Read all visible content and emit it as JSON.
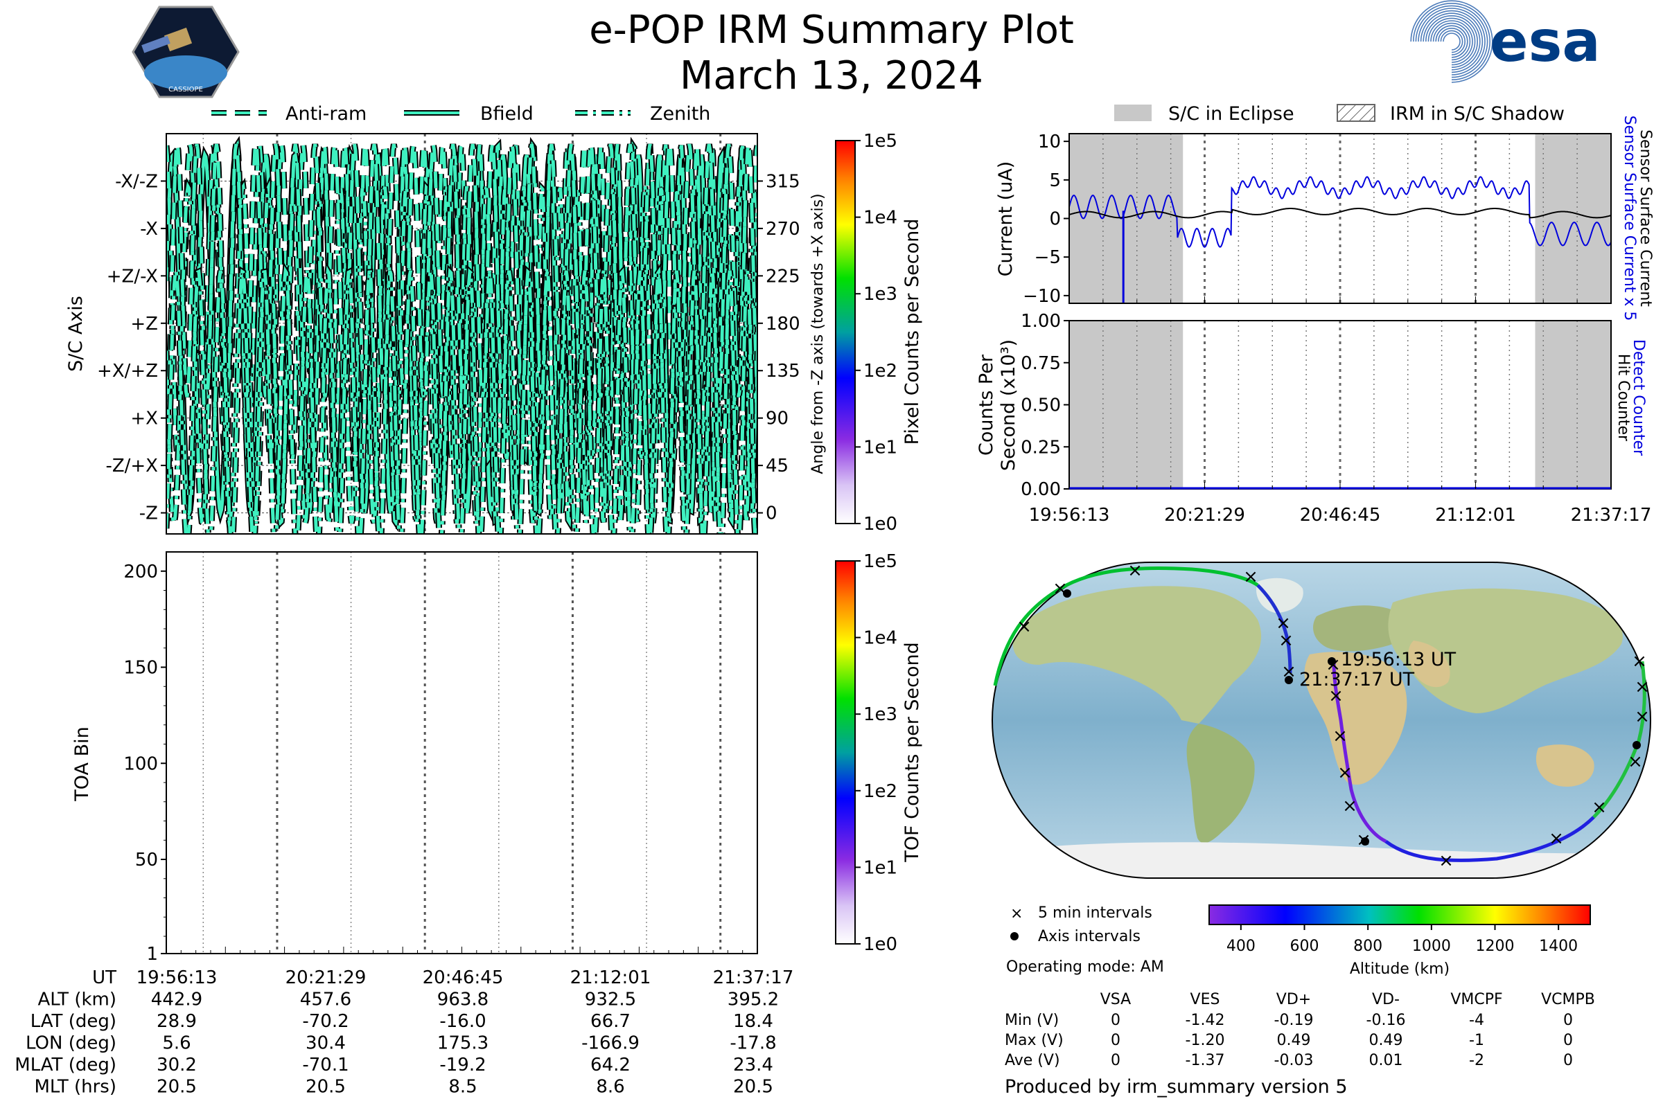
{
  "title": "e-POP IRM Summary Plot",
  "subtitle": "March 13, 2024",
  "logos": {
    "left": "CASSIOPE",
    "right": "esa"
  },
  "legend_top": [
    "Anti-ram",
    "Bfield",
    "Zenith"
  ],
  "legend_right": [
    "S/C in Eclipse",
    "IRM in S/C Shadow"
  ],
  "colors": {
    "trace_fill": "#3ff0c0",
    "current_blue": "#0000dd",
    "eclipse": "#c8c8c8"
  },
  "chart_data": [
    {
      "type": "line",
      "id": "attitude",
      "ylabel": "S/C Axis",
      "ylabel_right": "Angle from -Z axis (towards +X axis)",
      "y_axis_labels": [
        "-X/-Z",
        "-X",
        "+Z/-X",
        "+Z",
        "+X/+Z",
        "+X",
        "-Z/+X",
        "-Z"
      ],
      "y_ticks_right": [
        "315",
        "270",
        "225",
        "180",
        "135",
        "90",
        "45",
        "0"
      ],
      "ylim": [
        -20,
        360
      ],
      "series_names": [
        "Anti-ram",
        "Bfield",
        "Zenith"
      ],
      "colorbar": {
        "label": "Pixel Counts per Second",
        "ticks": [
          "1e0",
          "1e1",
          "1e2",
          "1e3",
          "1e4",
          "1e5"
        ]
      }
    },
    {
      "type": "heatmap",
      "id": "toa",
      "ylabel": "TOA Bin",
      "y_ticks": [
        "1",
        "50",
        "100",
        "150",
        "200"
      ],
      "ylim": [
        1,
        210
      ],
      "colorbar": {
        "label": "TOF Counts per Second",
        "ticks": [
          "1e0",
          "1e1",
          "1e2",
          "1e3",
          "1e4",
          "1e5"
        ]
      }
    },
    {
      "type": "line",
      "id": "current",
      "ylabel": "Current (uA)",
      "ylabel_right_1": "Sensor Surface Current x 5",
      "ylabel_right_2": "Sensor Surface Current",
      "y_ticks": [
        "10",
        "5",
        "0",
        "−5",
        "−10"
      ],
      "ylim": [
        -11,
        11
      ],
      "eclipse_intervals": [
        [
          0,
          0.21
        ],
        [
          0.86,
          1.0
        ]
      ]
    },
    {
      "type": "line",
      "id": "counts",
      "ylabel_1": "Counts Per",
      "ylabel_2": "Second (x10³)",
      "ylabel_right_1": "Detect Counter",
      "ylabel_right_2": "Hit Counter",
      "y_ticks": [
        "1.00",
        "0.75",
        "0.50",
        "0.25",
        "0.00"
      ],
      "ylim": [
        0,
        1
      ],
      "x_ticks": [
        "19:56:13",
        "20:21:29",
        "20:46:45",
        "21:12:01",
        "21:37:17"
      ],
      "eclipse_intervals": [
        [
          0,
          0.21
        ],
        [
          0.86,
          1.0
        ]
      ]
    }
  ],
  "ephemeris": {
    "rows": [
      {
        "label": "UT",
        "values": [
          "19:56:13",
          "20:21:29",
          "20:46:45",
          "21:12:01",
          "21:37:17"
        ]
      },
      {
        "label": "ALT (km)",
        "values": [
          "442.9",
          "457.6",
          "963.8",
          "932.5",
          "395.2"
        ]
      },
      {
        "label": "LAT (deg)",
        "values": [
          "28.9",
          "-70.2",
          "-16.0",
          "66.7",
          "18.4"
        ]
      },
      {
        "label": "LON (deg)",
        "values": [
          "5.6",
          "30.4",
          "175.3",
          "-166.9",
          "-17.8"
        ]
      },
      {
        "label": "MLAT (deg)",
        "values": [
          "30.2",
          "-70.1",
          "-19.2",
          "64.2",
          "23.4"
        ]
      },
      {
        "label": "MLT (hrs)",
        "values": [
          "20.5",
          "20.5",
          "8.5",
          "8.6",
          "20.5"
        ]
      }
    ]
  },
  "map": {
    "start_label": "19:56:13 UT",
    "end_label": "21:37:17 UT",
    "legend": [
      "5 min intervals",
      "Axis intervals"
    ],
    "altitude_bar": {
      "label": "Altitude (km)",
      "ticks": [
        "400",
        "600",
        "800",
        "1000",
        "1200",
        "1400"
      ],
      "range": [
        300,
        1500
      ]
    }
  },
  "operating_mode": "Operating mode: AM",
  "voltages": {
    "headers": [
      "VSA",
      "VES",
      "VD+",
      "VD-",
      "VMCPF",
      "VCMPB"
    ],
    "rows": [
      {
        "label": "Min (V)",
        "values": [
          "0",
          "-1.42",
          "-0.19",
          "-0.16",
          "-4",
          "0"
        ]
      },
      {
        "label": "Max (V)",
        "values": [
          "0",
          "-1.20",
          "0.49",
          "0.49",
          "-1",
          "0"
        ]
      },
      {
        "label": "Ave (V)",
        "values": [
          "0",
          "-1.37",
          "-0.03",
          "0.01",
          "-2",
          "0"
        ]
      }
    ]
  },
  "footer": "Produced by irm_summary version 5"
}
